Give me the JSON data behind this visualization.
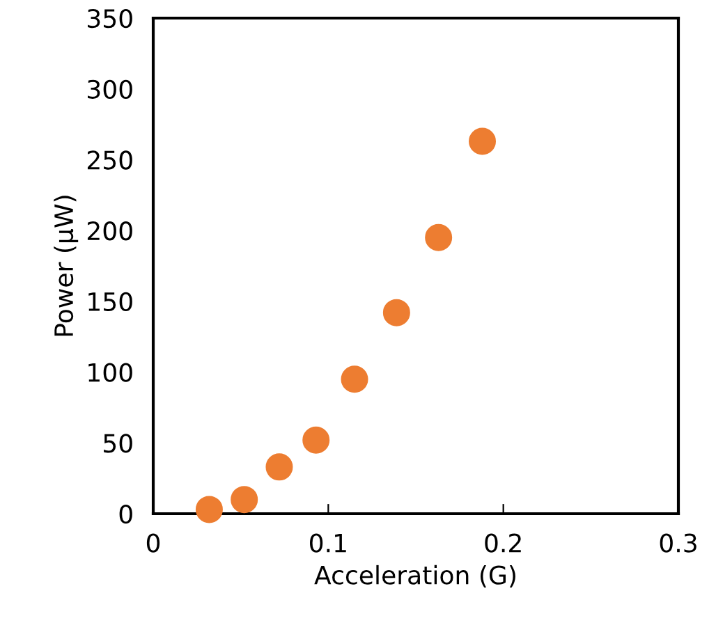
{
  "chart_data": {
    "type": "scatter",
    "xlabel": "Acceleration (G)",
    "ylabel": "Power (μW)",
    "x": [
      0.032,
      0.052,
      0.072,
      0.093,
      0.115,
      0.139,
      0.163,
      0.188
    ],
    "series": [
      {
        "color": "#ed7d31",
        "values": [
          3,
          10,
          33,
          52,
          95,
          142,
          195,
          263
        ]
      }
    ],
    "xlim": [
      0,
      0.3
    ],
    "xticks": [
      0,
      0.1,
      0.2,
      0.3
    ],
    "ylim": [
      0,
      350
    ],
    "yticks": [
      0,
      50,
      100,
      150,
      200,
      250,
      300,
      350
    ],
    "grid": false,
    "legend": false,
    "marker": "circle"
  }
}
